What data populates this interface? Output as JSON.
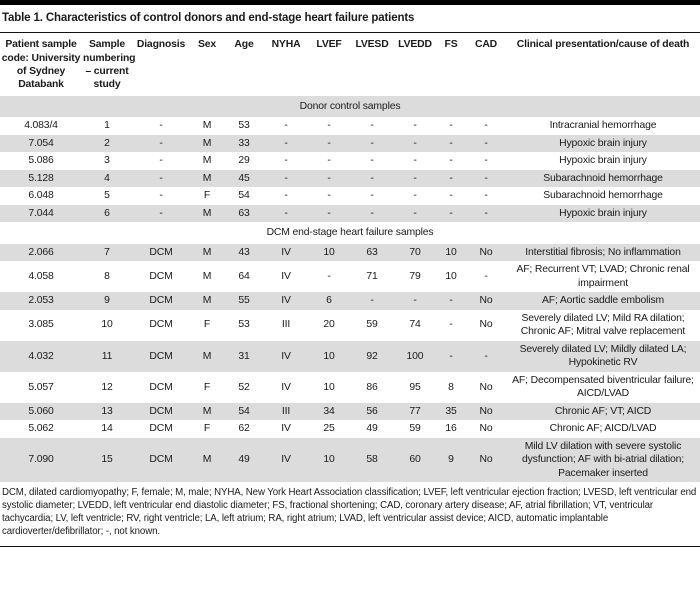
{
  "title": "Table 1. Characteristics of control donors and end-stage heart failure patients",
  "table": {
    "columns": [
      "Patient sample\ncode: University\nof Sydney\nDatabank",
      "Sample\nnumbering\n– current\nstudy",
      "Diagnosis",
      "Sex",
      "Age",
      "NYHA",
      "LVEF",
      "LVESD",
      "LVEDD",
      "FS",
      "CAD",
      "Clinical presentation/cause of death"
    ],
    "sections": [
      {
        "label": "Donor control samples",
        "rows": [
          [
            "4.083/4",
            "1",
            "-",
            "M",
            "53",
            "-",
            "-",
            "-",
            "-",
            "-",
            "-",
            "Intracranial hemorrhage"
          ],
          [
            "7.054",
            "2",
            "-",
            "M",
            "33",
            "-",
            "-",
            "-",
            "-",
            "-",
            "-",
            "Hypoxic brain injury"
          ],
          [
            "5.086",
            "3",
            "-",
            "M",
            "29",
            "-",
            "-",
            "-",
            "-",
            "-",
            "-",
            "Hypoxic brain injury"
          ],
          [
            "5.128",
            "4",
            "-",
            "M",
            "45",
            "-",
            "-",
            "-",
            "-",
            "-",
            "-",
            "Subarachnoid hemorrhage"
          ],
          [
            "6.048",
            "5",
            "-",
            "F",
            "54",
            "-",
            "-",
            "-",
            "-",
            "-",
            "-",
            "Subarachnoid hemorrhage"
          ],
          [
            "7.044",
            "6",
            "-",
            "M",
            "63",
            "-",
            "-",
            "-",
            "-",
            "-",
            "-",
            "Hypoxic brain injury"
          ]
        ]
      },
      {
        "label": "DCM end-stage heart failure samples",
        "rows": [
          [
            "2.066",
            "7",
            "DCM",
            "M",
            "43",
            "IV",
            "10",
            "63",
            "70",
            "10",
            "No",
            "Interstitial fibrosis; No inflammation"
          ],
          [
            "4.058",
            "8",
            "DCM",
            "M",
            "64",
            "IV",
            "-",
            "71",
            "79",
            "10",
            "-",
            "AF; Recurrent VT; LVAD; Chronic renal impairment"
          ],
          [
            "2.053",
            "9",
            "DCM",
            "M",
            "55",
            "IV",
            "6",
            "-",
            "-",
            "-",
            "No",
            "AF; Aortic saddle embolism"
          ],
          [
            "3.085",
            "10",
            "DCM",
            "F",
            "53",
            "III",
            "20",
            "59",
            "74",
            "-",
            "No",
            "Severely dilated LV; Mild RA dilation; Chronic AF; Mitral valve replacement"
          ],
          [
            "4.032",
            "11",
            "DCM",
            "M",
            "31",
            "IV",
            "10",
            "92",
            "100",
            "-",
            "-",
            "Severely dilated LV; Mildly dilated LA; Hypokinetic RV"
          ],
          [
            "5.057",
            "12",
            "DCM",
            "F",
            "52",
            "IV",
            "10",
            "86",
            "95",
            "8",
            "No",
            "AF; Decompensated biventricular failure; AICD/LVAD"
          ],
          [
            "5.060",
            "13",
            "DCM",
            "M",
            "54",
            "III",
            "34",
            "56",
            "77",
            "35",
            "No",
            "Chronic AF; VT; AICD"
          ],
          [
            "5.062",
            "14",
            "DCM",
            "F",
            "62",
            "IV",
            "25",
            "49",
            "59",
            "16",
            "No",
            "Chronic AF; AICD/LVAD"
          ],
          [
            "7.090",
            "15",
            "DCM",
            "M",
            "49",
            "IV",
            "10",
            "58",
            "60",
            "9",
            "No",
            "Mild LV dilation with severe systolic dysfunction; AF with bi-atrial dilation; Pacemaker inserted"
          ]
        ]
      }
    ]
  },
  "footnote": "DCM, dilated cardiomyopathy; F, female; M, male; NYHA, New York Heart Association classification; LVEF, left ventricular ejection fraction; LVESD, left ventricular end systolic diameter; LVEDD, left ventricular end diastolic diameter; FS, fractional shortening; CAD, coronary artery disease; AF, atrial fibrillation; VT, ventricular tachycardia; LV, left ventricle; RV, right ventricle; LA, left atrium; RA, right atrium; LVAD, left ventricular assist device; AICD, automatic implantable cardioverter/defibrillator; -, not known.",
  "zebra_color": "#dcdcdc"
}
